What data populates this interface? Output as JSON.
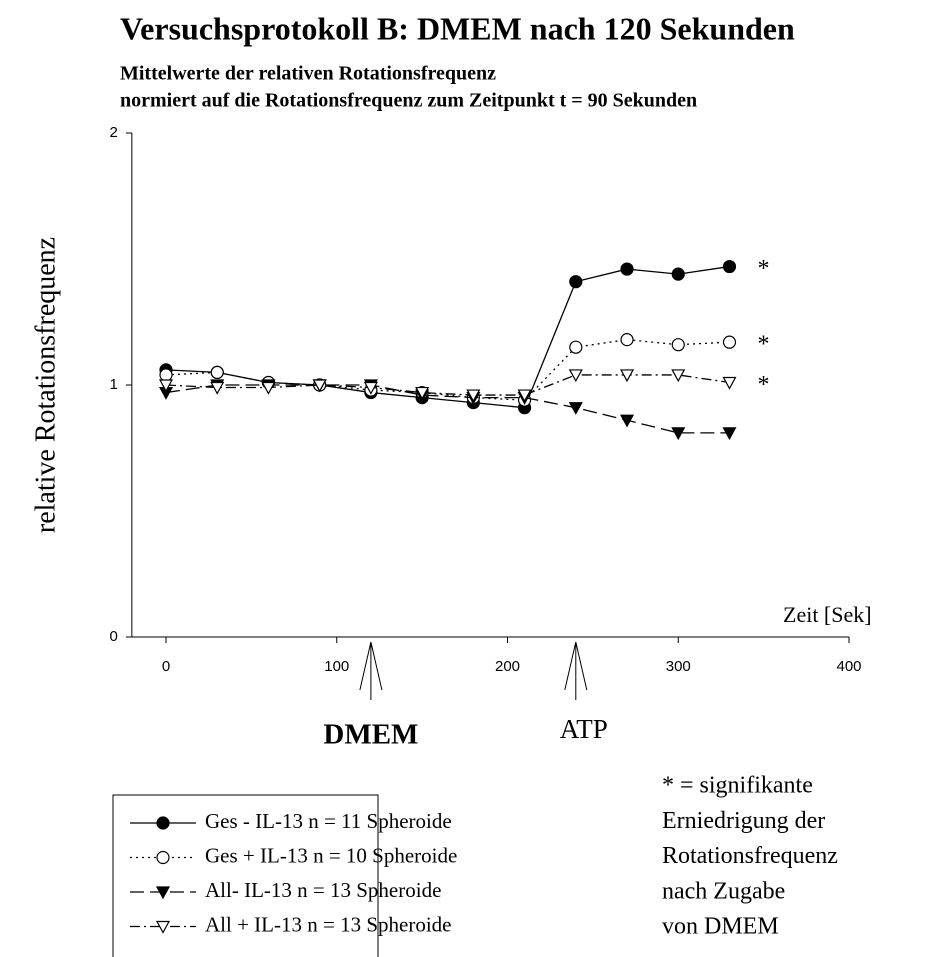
{
  "chart_data": {
    "type": "line",
    "title": "Versuchsprotokoll B: DMEM nach 120 Sekunden",
    "subtitle": [
      "Mittelwerte der relativen Rotationsfrequenz",
      "normiert auf die Rotationsfrequenz zum Zeitpunkt t = 90 Sekunden"
    ],
    "xlabel": "Zeit  [Sek]",
    "ylabel": "relative Rotationsfrequenz",
    "x": [
      0,
      30,
      60,
      90,
      120,
      150,
      180,
      210,
      240,
      270,
      300,
      330
    ],
    "xlim": [
      -20,
      400
    ],
    "xticks": [
      0,
      100,
      200,
      300,
      400
    ],
    "ylim": [
      0,
      2
    ],
    "yticks": [
      0,
      1,
      2
    ],
    "series": [
      {
        "name": "Ges - IL-13 n = 11 Spheroide",
        "color": "#000000",
        "marker": "circle",
        "filled": true,
        "dash": "solid",
        "annotation": "*",
        "values": [
          1.06,
          1.05,
          1.01,
          1.0,
          0.97,
          0.95,
          0.93,
          0.91,
          1.41,
          1.46,
          1.44,
          1.47
        ]
      },
      {
        "name": "Ges + IL-13 n = 10 Spheroide",
        "color": "#000000",
        "marker": "circle",
        "filled": false,
        "dash": "dotted",
        "annotation": "*",
        "values": [
          1.04,
          1.05,
          1.01,
          1.0,
          0.98,
          0.97,
          0.95,
          0.94,
          1.15,
          1.18,
          1.16,
          1.17
        ]
      },
      {
        "name": "All- IL-13 n = 13 Spheroide",
        "color": "#000000",
        "marker": "triangle-down",
        "filled": true,
        "dash": "dashed",
        "values": [
          0.97,
          1.0,
          1.0,
          1.0,
          1.0,
          0.96,
          0.95,
          0.95,
          0.91,
          0.86,
          0.81,
          0.81
        ]
      },
      {
        "name": "All + IL-13 n = 13 Spheroide",
        "color": "#000000",
        "marker": "triangle-down",
        "filled": false,
        "dash": "dashdot",
        "annotation": "*",
        "values": [
          1.0,
          0.99,
          0.99,
          1.0,
          0.99,
          0.97,
          0.96,
          0.96,
          1.04,
          1.04,
          1.04,
          1.01
        ]
      }
    ],
    "arrows": [
      {
        "text": "DMEM",
        "x": 120,
        "bold": true
      },
      {
        "text": "ATP",
        "x": 240,
        "bold": false
      }
    ],
    "note": [
      "* = signifikante",
      "Erniedrigung der",
      "Rotationsfrequenz",
      "nach Zugabe",
      "von DMEM"
    ]
  }
}
